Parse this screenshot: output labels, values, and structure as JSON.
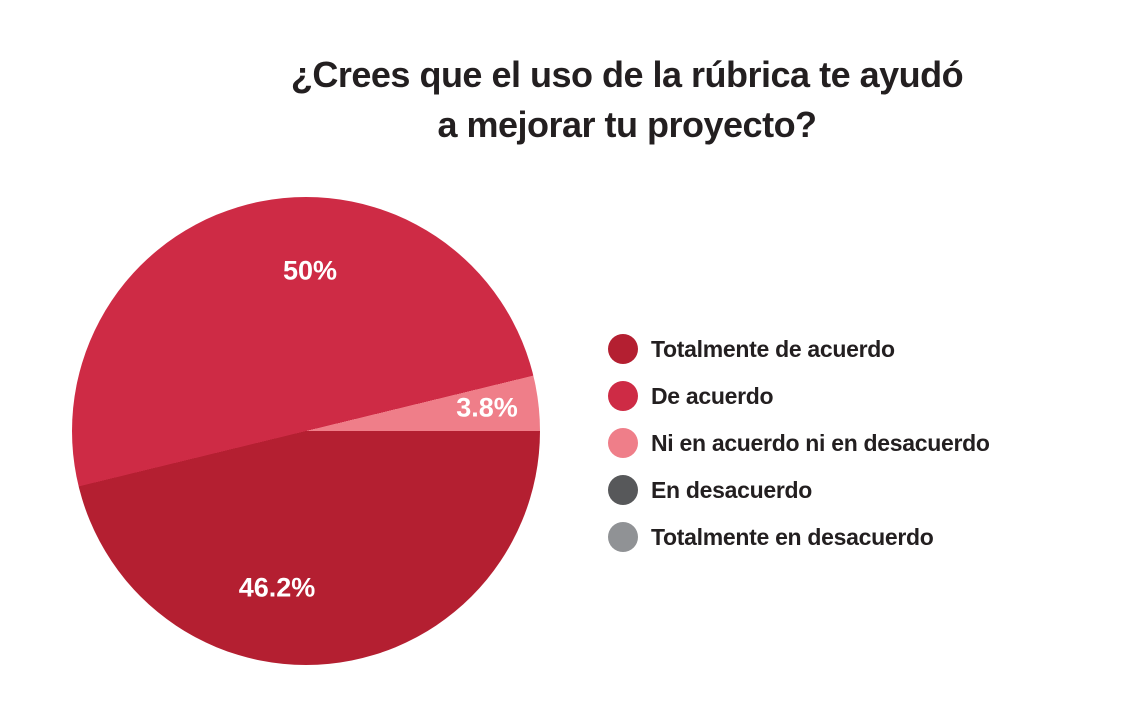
{
  "chart_data": {
    "type": "pie",
    "title": "¿Crees que el uso de la rúbrica te ayudó a mejorar tu proyecto?",
    "title_lines": [
      "¿Crees que el uso de la rúbrica te ayudó",
      "a mejorar tu proyecto?"
    ],
    "legend_position": "right",
    "background_color": "#ffffff",
    "title_color": "#231f20",
    "data_label_color": "#ffffff",
    "slices": [
      {
        "label": "Totalmente de acuerdo",
        "value": 46.2,
        "color": "#b41f31",
        "data_label": "46.2%"
      },
      {
        "label": "De acuerdo",
        "value": 50,
        "color": "#ce2b45",
        "data_label": "50%"
      },
      {
        "label": "Ni en acuerdo ni en desacuerdo",
        "value": 3.8,
        "color": "#ef7e89",
        "data_label": "3.8%"
      },
      {
        "label": "En desacuerdo",
        "value": 0,
        "color": "#57585a",
        "data_label": ""
      },
      {
        "label": "Totalmente en desacuerdo",
        "value": 0,
        "color": "#909295",
        "data_label": ""
      }
    ],
    "draw_order": [
      2,
      0,
      1
    ],
    "start_angle_deg": 76.3
  }
}
